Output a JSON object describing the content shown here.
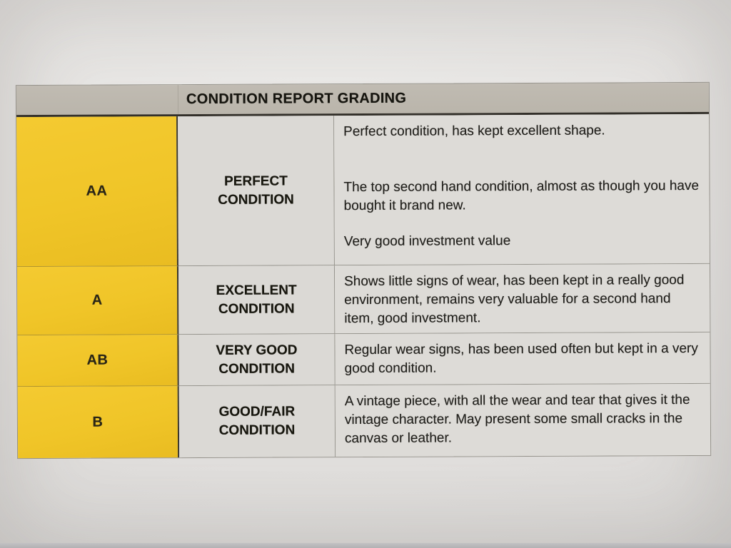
{
  "document": {
    "title": "CONDITION REPORT GRADING",
    "colors": {
      "grade_cell_yellow": "#f0c528",
      "header_gray": "#bdb8ae",
      "cell_gray": "#dcdad6",
      "text": "#21201d"
    },
    "columns": [
      "grade",
      "condition_name",
      "condition_description"
    ],
    "rows": [
      {
        "grade": "AA",
        "condition": "PERFECT CONDITION",
        "description": [
          "Perfect condition, has kept excellent shape.",
          "The top second hand condition, almost as though you have bought it brand new.",
          "Very good investment value"
        ]
      },
      {
        "grade": "A",
        "condition": "EXCELLENT CONDITION",
        "description": [
          "Shows little signs of wear, has been kept in a really good environment, remains very valuable for a second hand item, good investment."
        ]
      },
      {
        "grade": "AB",
        "condition": "VERY GOOD CONDITION",
        "description": [
          "Regular wear signs, has been used often but kept in a very good condition."
        ]
      },
      {
        "grade": "B",
        "condition": "GOOD/FAIR CONDITION",
        "description": [
          "A vintage piece, with all the wear and tear that gives it the vintage character. May present some small cracks in the canvas or leather."
        ]
      }
    ]
  }
}
